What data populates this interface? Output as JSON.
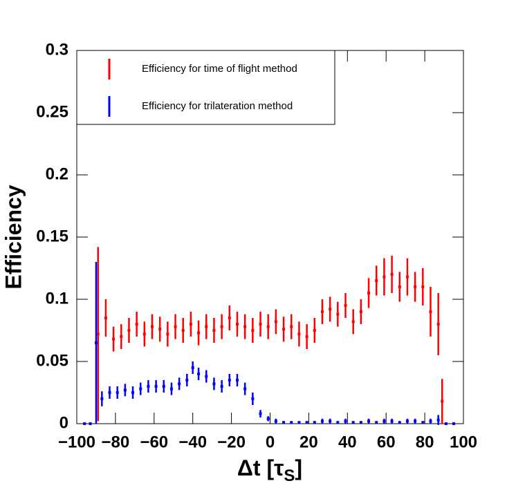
{
  "chart_data": {
    "type": "errorbar",
    "x_label": {
      "main": "Δt [τ",
      "sub": "S",
      "end": "]"
    },
    "y_label": "Efficiency",
    "xlim": [
      -100,
      100
    ],
    "ylim": [
      0,
      0.3
    ],
    "xticks": [
      {
        "value": -100,
        "label": "−100"
      },
      {
        "value": -80,
        "label": "−80"
      },
      {
        "value": -60,
        "label": "−60"
      },
      {
        "value": -40,
        "label": "−40"
      },
      {
        "value": -20,
        "label": "−20"
      },
      0,
      20,
      40,
      60,
      80,
      100
    ],
    "yticks": [
      0,
      0.05,
      0.1,
      0.15,
      0.2,
      0.25,
      0.3
    ],
    "legend": "top-left",
    "series": [
      {
        "name": "Efficiency for time of flight method",
        "color": "#ff0000",
        "x": [
          -89,
          -85,
          -81,
          -77,
          -73,
          -69,
          -65,
          -61,
          -57,
          -53,
          -49,
          -45,
          -41,
          -37,
          -33,
          -29,
          -25,
          -21,
          -17,
          -13,
          -9,
          -5,
          -1,
          3,
          7,
          11,
          15,
          19,
          23,
          27,
          31,
          35,
          39,
          43,
          47,
          51,
          55,
          59,
          63,
          67,
          71,
          75,
          79,
          83,
          87,
          89
        ],
        "values": [
          0.072,
          0.085,
          0.068,
          0.07,
          0.075,
          0.08,
          0.072,
          0.078,
          0.076,
          0.072,
          0.078,
          0.075,
          0.08,
          0.073,
          0.078,
          0.075,
          0.078,
          0.085,
          0.08,
          0.078,
          0.075,
          0.08,
          0.078,
          0.082,
          0.076,
          0.078,
          0.072,
          0.07,
          0.075,
          0.09,
          0.092,
          0.088,
          0.095,
          0.082,
          0.09,
          0.105,
          0.115,
          0.118,
          0.12,
          0.11,
          0.118,
          0.11,
          0.11,
          0.09,
          0.08,
          0.018
        ],
        "errors": [
          0.07,
          0.015,
          0.01,
          0.01,
          0.01,
          0.01,
          0.01,
          0.01,
          0.01,
          0.01,
          0.01,
          0.01,
          0.01,
          0.01,
          0.01,
          0.01,
          0.01,
          0.01,
          0.01,
          0.01,
          0.01,
          0.01,
          0.01,
          0.01,
          0.01,
          0.01,
          0.01,
          0.01,
          0.01,
          0.01,
          0.01,
          0.01,
          0.01,
          0.01,
          0.01,
          0.012,
          0.012,
          0.015,
          0.015,
          0.012,
          0.015,
          0.012,
          0.015,
          0.02,
          0.025,
          0.018
        ]
      },
      {
        "name": "Efficiency for trilateration method",
        "color": "#0000ff",
        "x": [
          -96,
          -93,
          -90,
          -87,
          -83,
          -79,
          -75,
          -71,
          -67,
          -63,
          -59,
          -55,
          -51,
          -47,
          -43,
          -40,
          -37,
          -33,
          -29,
          -25,
          -21,
          -17,
          -13,
          -9,
          -5,
          -1,
          3,
          7,
          11,
          15,
          19,
          23,
          27,
          31,
          35,
          39,
          43,
          47,
          51,
          55,
          59,
          63,
          67,
          71,
          75,
          79,
          83,
          87,
          91,
          95
        ],
        "values": [
          0,
          0,
          0.065,
          0.02,
          0.025,
          0.025,
          0.027,
          0.025,
          0.028,
          0.03,
          0.03,
          0.03,
          0.028,
          0.032,
          0.035,
          0.045,
          0.04,
          0.038,
          0.032,
          0.03,
          0.035,
          0.035,
          0.028,
          0.02,
          0.008,
          0.004,
          0.002,
          0.001,
          0.001,
          0.001,
          0.001,
          0.001,
          0.002,
          0.002,
          0.001,
          0.002,
          0.001,
          0.001,
          0.002,
          0.001,
          0.002,
          0.002,
          0.001,
          0.002,
          0.002,
          0.001,
          0.002,
          0.003,
          0,
          0
        ],
        "errors": [
          0,
          0,
          0.065,
          0.006,
          0.005,
          0.005,
          0.005,
          0.005,
          0.005,
          0.005,
          0.005,
          0.005,
          0.005,
          0.005,
          0.005,
          0.005,
          0.005,
          0.005,
          0.005,
          0.005,
          0.005,
          0.005,
          0.005,
          0.005,
          0.003,
          0.002,
          0.002,
          0.001,
          0.001,
          0.001,
          0.001,
          0.001,
          0.002,
          0.002,
          0.001,
          0.002,
          0.001,
          0.001,
          0.002,
          0.001,
          0.002,
          0.002,
          0.001,
          0.002,
          0.002,
          0.001,
          0.002,
          0.004,
          0,
          0
        ]
      }
    ]
  }
}
